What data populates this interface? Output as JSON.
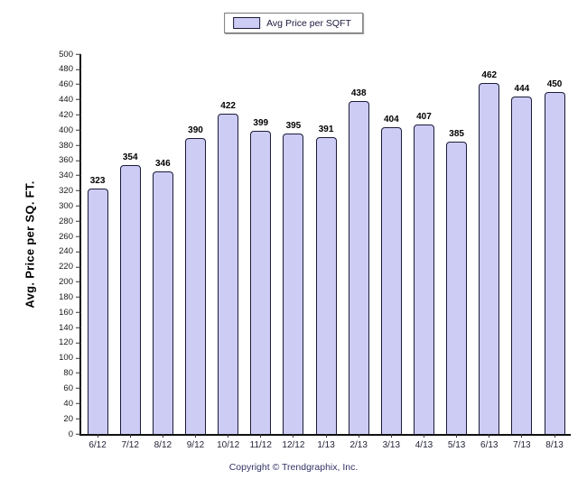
{
  "legend": {
    "label": "Avg Price per SQFT"
  },
  "footer": {
    "copyright": "Copyright © Trendgraphix, Inc."
  },
  "chart_data": {
    "type": "bar",
    "title": "",
    "xlabel": "",
    "ylabel": "Avg. Price per SQ. FT.",
    "categories": [
      "6/12",
      "7/12",
      "8/12",
      "9/12",
      "10/12",
      "11/12",
      "12/12",
      "1/13",
      "2/13",
      "3/13",
      "4/13",
      "5/13",
      "6/13",
      "7/13",
      "8/13"
    ],
    "values": [
      323,
      354,
      346,
      390,
      422,
      399,
      395,
      391,
      438,
      404,
      407,
      385,
      462,
      444,
      450
    ],
    "series_name": "Avg Price per SQFT",
    "legend": [
      "Avg Price per SQFT"
    ],
    "legend_position": "top-center",
    "ylim": [
      0,
      500
    ],
    "ytick_step": 20,
    "grid": false,
    "bar_labels_shown": true,
    "colors": {
      "bar_fill": "#ccccf5",
      "bar_border": "#1c1c3a",
      "axis": "#111111",
      "value_label": "#000000",
      "copyright_text": "#333366"
    }
  }
}
